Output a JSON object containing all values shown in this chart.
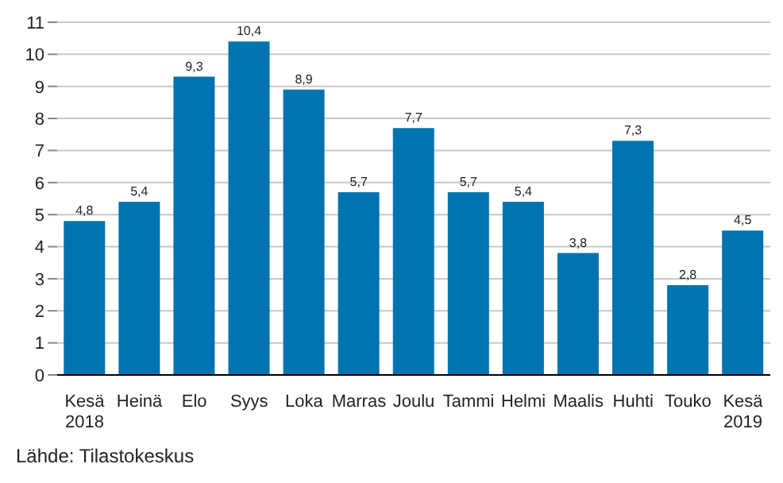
{
  "chart_data": {
    "type": "bar",
    "categories": [
      "Kesä\n2018",
      "Heinä",
      "Elo",
      "Syys",
      "Loka",
      "Marras",
      "Joulu",
      "Tammi",
      "Helmi",
      "Maalis",
      "Huhti",
      "Touko",
      "Kesä\n2019"
    ],
    "values": [
      4.8,
      5.4,
      9.3,
      10.4,
      8.9,
      5.7,
      7.7,
      5.7,
      5.4,
      3.8,
      7.3,
      2.8,
      4.5
    ],
    "value_labels": [
      "4,8",
      "5,4",
      "9,3",
      "10,4",
      "8,9",
      "5,7",
      "7,7",
      "5,7",
      "5,4",
      "3,8",
      "7,3",
      "2,8",
      "4,5"
    ],
    "color": "#0073b0",
    "ylim": [
      0,
      11
    ],
    "yticks": [
      0,
      1,
      2,
      3,
      4,
      5,
      6,
      7,
      8,
      9,
      10,
      11
    ],
    "grid": "y",
    "annotations": [
      "Lähde: Tilastokeskus"
    ]
  }
}
